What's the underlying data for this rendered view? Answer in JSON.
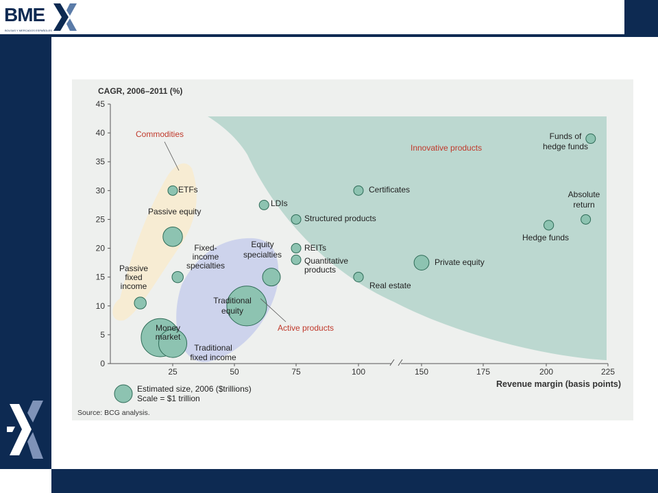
{
  "header": {
    "logo_text": "BME",
    "logo_subtitle": "BOLSAS Y MERCADOS ESPAÑOLES"
  },
  "colors": {
    "navy": "#0d2a52",
    "panel_bg": "#eef0ee",
    "innovative_area": "#bcd8d0",
    "active_area": "#cdd3ec",
    "commodities_area": "#f7ecd3",
    "bubble_fill": "#8dc3b1",
    "bubble_stroke": "#2e6b57",
    "label_red": "#c0392b"
  },
  "chart_data": {
    "type": "scatter",
    "title": "CAGR, 2006–2011 (%)",
    "xlabel": "Revenue margin (basis points)",
    "ylabel": "CAGR, 2006–2011 (%)",
    "xlim": [
      0,
      225
    ],
    "ylim": [
      0,
      45
    ],
    "x_ticks": [
      "25",
      "50",
      "75",
      "100",
      "150",
      "175",
      "200",
      "225"
    ],
    "y_ticks": [
      "0",
      "5",
      "10",
      "15",
      "20",
      "25",
      "30",
      "35",
      "40",
      "45"
    ],
    "x_axis_break": "between 100 and 150",
    "points": [
      {
        "label": "ETFs",
        "x": 25,
        "y": 30,
        "size": 0.05
      },
      {
        "label": "Passive equity",
        "x": 25,
        "y": 22,
        "size": 1.2
      },
      {
        "label": "Fixed-income specialties",
        "x": 27,
        "y": 15,
        "size": 0.4
      },
      {
        "label": "Passive fixed income",
        "x": 12,
        "y": 10.5,
        "size": 0.45
      },
      {
        "label": "Money market",
        "x": 20,
        "y": 4.5,
        "size": 4.6
      },
      {
        "label": "Traditional fixed income",
        "x": 25,
        "y": 3.5,
        "size": 2.5
      },
      {
        "label": "Traditional equity",
        "x": 55,
        "y": 10,
        "size": 5.0
      },
      {
        "label": "Equity specialties",
        "x": 65,
        "y": 15,
        "size": 1.0
      },
      {
        "label": "LDIs",
        "x": 62,
        "y": 27.5,
        "size": 0.05
      },
      {
        "label": "Structured products",
        "x": 75,
        "y": 25,
        "size": 0.1
      },
      {
        "label": "REITs",
        "x": 75,
        "y": 20,
        "size": 0.1
      },
      {
        "label": "Quantitative products",
        "x": 75,
        "y": 18,
        "size": 0.1
      },
      {
        "label": "Certificates",
        "x": 100,
        "y": 30,
        "size": 0.1
      },
      {
        "label": "Real estate",
        "x": 100,
        "y": 15,
        "size": 0.3
      },
      {
        "label": "Private equity",
        "x": 150,
        "y": 17.5,
        "size": 0.7
      },
      {
        "label": "Hedge funds",
        "x": 201,
        "y": 24,
        "size": 0.3
      },
      {
        "label": "Absolute return",
        "x": 216,
        "y": 25,
        "size": 0.2
      },
      {
        "label": "Funds of hedge funds",
        "x": 218,
        "y": 39,
        "size": 0.2
      }
    ],
    "annotations": [
      "Commodities",
      "Innovative products",
      "Active products"
    ],
    "legend": {
      "line1": "Estimated size, 2006 ($trillions)",
      "line2": "Scale = $1 trillion"
    },
    "source": "Source: BCG analysis."
  }
}
